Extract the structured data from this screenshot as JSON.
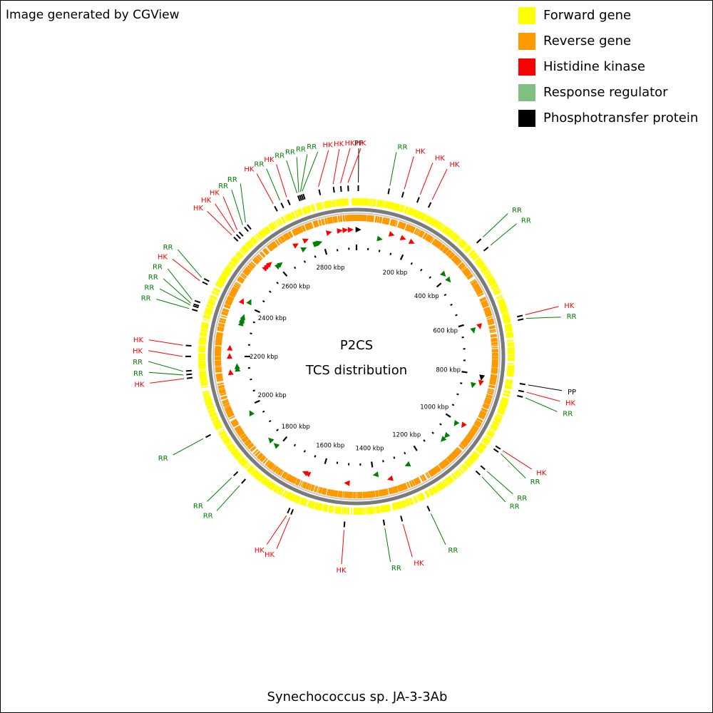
{
  "credit": "Image generated by CGView",
  "center_title": "P2CS",
  "center_subtitle": "TCS distribution",
  "organism": "Synechococcus sp. JA-3-3Ab",
  "colors": {
    "forward": "#ffff00",
    "reverse": "#ff9900",
    "hk": "#ff0000",
    "rr": "#7fbf7f",
    "rr_label": "#008000",
    "rr_marker": "#008000",
    "pp": "#000000",
    "backbone": "#777777"
  },
  "legend": [
    {
      "label": "Forward gene",
      "color": "#ffff00"
    },
    {
      "label": "Reverse gene",
      "color": "#ff9900"
    },
    {
      "label": "Histidine kinase",
      "color": "#ff0000"
    },
    {
      "label": "Response regulator",
      "color": "#7fbf7f"
    },
    {
      "label": "Phosphotransfer protein",
      "color": "#000000"
    }
  ],
  "genome": {
    "length_kbp": 2933,
    "tick_labels": [
      "200 kbp",
      "400 kbp",
      "600 kbp",
      "800 kbp",
      "1000 kbp",
      "1200 kbp",
      "1400 kbp",
      "1600 kbp",
      "1800 kbp",
      "2000 kbp",
      "2200 kbp",
      "2400 kbp",
      "2600 kbp",
      "2800 kbp"
    ]
  },
  "features": [
    {
      "label": "PP",
      "type": "pp",
      "pos_kbp": 5
    },
    {
      "label": "RR",
      "type": "rr",
      "pos_kbp": 90
    },
    {
      "label": "HK",
      "type": "hk",
      "pos_kbp": 130
    },
    {
      "label": "HK",
      "type": "hk",
      "pos_kbp": 175
    },
    {
      "label": "HK",
      "type": "hk",
      "pos_kbp": 210
    },
    {
      "label": "RR",
      "type": "rr",
      "pos_kbp": 380
    },
    {
      "label": "RR",
      "type": "rr",
      "pos_kbp": 410
    },
    {
      "label": "HK",
      "type": "hk",
      "pos_kbp": 620
    },
    {
      "label": "RR",
      "type": "rr",
      "pos_kbp": 630
    },
    {
      "label": "PP",
      "type": "pp",
      "pos_kbp": 810
    },
    {
      "label": "HK",
      "type": "hk",
      "pos_kbp": 830
    },
    {
      "label": "RR",
      "type": "rr",
      "pos_kbp": 845
    },
    {
      "label": "HK",
      "type": "hk",
      "pos_kbp": 1000
    },
    {
      "label": "RR",
      "type": "rr",
      "pos_kbp": 1010
    },
    {
      "label": "RR",
      "type": "rr",
      "pos_kbp": 1070
    },
    {
      "label": "RR",
      "type": "rr",
      "pos_kbp": 1090
    },
    {
      "label": "RR",
      "type": "rr",
      "pos_kbp": 1260
    },
    {
      "label": "HK",
      "type": "hk",
      "pos_kbp": 1340
    },
    {
      "label": "RR",
      "type": "rr",
      "pos_kbp": 1390
    },
    {
      "label": "HK",
      "type": "hk",
      "pos_kbp": 1500
    },
    {
      "label": "HK",
      "type": "hk",
      "pos_kbp": 1650
    },
    {
      "label": "HK",
      "type": "hk",
      "pos_kbp": 1660
    },
    {
      "label": "RR",
      "type": "rr",
      "pos_kbp": 1810
    },
    {
      "label": "RR",
      "type": "rr",
      "pos_kbp": 1840
    },
    {
      "label": "RR",
      "type": "rr",
      "pos_kbp": 1970
    },
    {
      "label": "HK",
      "type": "hk",
      "pos_kbp": 2140
    },
    {
      "label": "RR",
      "type": "rr",
      "pos_kbp": 2150
    },
    {
      "label": "RR",
      "type": "rr",
      "pos_kbp": 2160
    },
    {
      "label": "HK",
      "type": "hk",
      "pos_kbp": 2200
    },
    {
      "label": "HK",
      "type": "hk",
      "pos_kbp": 2230
    },
    {
      "label": "RR",
      "type": "rr",
      "pos_kbp": 2330
    },
    {
      "label": "RR",
      "type": "rr",
      "pos_kbp": 2340
    },
    {
      "label": "RR",
      "type": "rr",
      "pos_kbp": 2345
    },
    {
      "label": "RR",
      "type": "rr",
      "pos_kbp": 2355
    },
    {
      "label": "HK",
      "type": "hk",
      "pos_kbp": 2410
    },
    {
      "label": "RR",
      "type": "rr",
      "pos_kbp": 2420
    },
    {
      "label": "HK",
      "type": "hk",
      "pos_kbp": 2560
    },
    {
      "label": "HK",
      "type": "hk",
      "pos_kbp": 2570
    },
    {
      "label": "HK",
      "type": "hk",
      "pos_kbp": 2580
    },
    {
      "label": "RR",
      "type": "rr",
      "pos_kbp": 2600
    },
    {
      "label": "RR",
      "type": "rr",
      "pos_kbp": 2610
    },
    {
      "label": "HK",
      "type": "hk",
      "pos_kbp": 2700
    },
    {
      "label": "RR",
      "type": "rr",
      "pos_kbp": 2720
    },
    {
      "label": "HK",
      "type": "hk",
      "pos_kbp": 2740
    },
    {
      "label": "RR",
      "type": "rr",
      "pos_kbp": 2770
    },
    {
      "label": "RR",
      "type": "rr",
      "pos_kbp": 2775
    },
    {
      "label": "RR",
      "type": "rr",
      "pos_kbp": 2780
    },
    {
      "label": "RR",
      "type": "rr",
      "pos_kbp": 2785
    },
    {
      "label": "HK",
      "type": "hk",
      "pos_kbp": 2830
    },
    {
      "label": "HK",
      "type": "hk",
      "pos_kbp": 2870
    },
    {
      "label": "HK",
      "type": "hk",
      "pos_kbp": 2890
    },
    {
      "label": "HK",
      "type": "hk",
      "pos_kbp": 2910
    }
  ]
}
